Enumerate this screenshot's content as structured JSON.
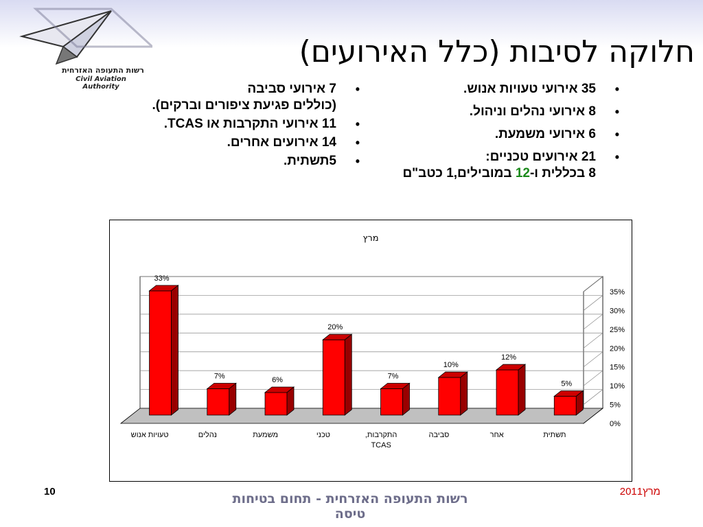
{
  "logo": {
    "icon": "paper-plane-icon",
    "text_he": "רשות התעופה האזרחית",
    "text_en": "Civil Aviation Authority"
  },
  "slide": {
    "title": "חלוקה לסיבות (כלל האירועים)"
  },
  "bullets_right": [
    {
      "text": "35 אירועי טעויות אנוש."
    },
    {
      "text": "8 אירועי נהלים וניהול."
    },
    {
      "text": "6 אירועי משמעת."
    },
    {
      "text": "21 אירועים טכניים:",
      "subline_prefix": "8 בכללית ו-",
      "subline_highlight": "12",
      "subline_suffix": " במובילים,1 כטב\"ם"
    }
  ],
  "bullets_left": [
    {
      "text": "7 אירועי סביבה",
      "subline": "(כוללים פגיעת ציפורים וברקים)."
    },
    {
      "text": "11 אירועי התקרבות או  TCAS."
    },
    {
      "text": "14 אירועים אחרים."
    },
    {
      "text": "5תשתית."
    }
  ],
  "chart_data": {
    "type": "bar",
    "title": "מרץ",
    "categories": [
      "טעויות אנוש",
      "נהלים",
      "משמעת",
      "טכני",
      "התקרבות,\nTCAS",
      "סביבה",
      "אחר",
      "תשתית"
    ],
    "values": [
      33,
      7,
      6,
      20,
      7,
      10,
      12,
      5
    ],
    "data_labels": [
      "33%",
      "7%",
      "6%",
      "20%",
      "7%",
      "10%",
      "12%",
      "5%"
    ],
    "y_ticks": [
      "0%",
      "5%",
      "10%",
      "15%",
      "20%",
      "25%",
      "30%",
      "35%"
    ],
    "ylim": [
      0,
      35
    ],
    "y_axis_side": "right",
    "grid": true,
    "style": "3d",
    "colors": {
      "bar": "#ff0000",
      "bar_top": "#cc0000",
      "bar_side": "#990000",
      "floor": "#c0c0c0"
    }
  },
  "footer": {
    "page_number": "10",
    "org": "רשות התעופה האזרחית - תחום בטיחות טיסה",
    "month": "מרץ",
    "year": "2011"
  }
}
